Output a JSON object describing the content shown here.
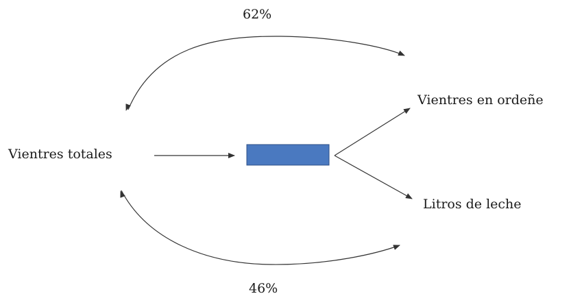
{
  "diagram": {
    "nodes": {
      "input": "Vientres totales",
      "output_top": "Vientres en ordeñe",
      "output_bottom": "Litros de leche"
    },
    "relations": {
      "top_percentage": "62%",
      "bottom_percentage": "46%"
    },
    "colors": {
      "process_box_fill": "#4a79c0",
      "process_box_border": "#2d4f86",
      "arrow": "#333333"
    }
  }
}
